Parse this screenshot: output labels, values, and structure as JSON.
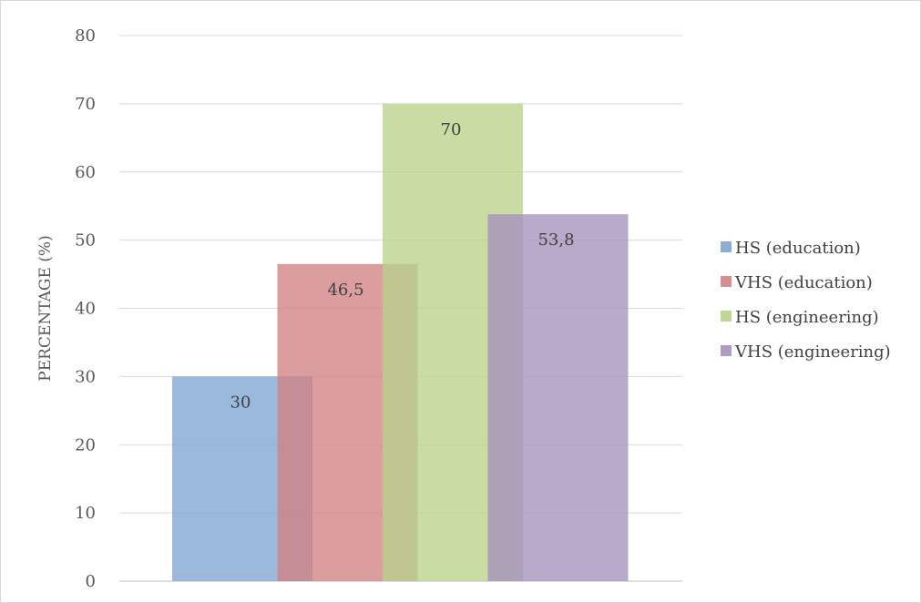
{
  "chart_data": {
    "type": "bar",
    "title": "",
    "xlabel": "",
    "ylabel": "PERCENTAGE (%)",
    "ylim": [
      0,
      80
    ],
    "yticks": [
      0,
      10,
      20,
      30,
      40,
      50,
      60,
      70,
      80
    ],
    "grid": true,
    "legend_position": "right",
    "categories": [
      ""
    ],
    "series": [
      {
        "name": "HS (education)",
        "values": [
          30
        ],
        "label": "30",
        "color": "#7ea5d2"
      },
      {
        "name": "VHS (education)",
        "values": [
          46.5
        ],
        "label": "46,5",
        "color": "#d18283"
      },
      {
        "name": "HS (engineering)",
        "values": [
          70
        ],
        "label": "70",
        "color": "#b8d28a"
      },
      {
        "name": "VHS (engineering)",
        "values": [
          53.8
        ],
        "label": "53,8",
        "color": "#a591bd"
      }
    ]
  }
}
